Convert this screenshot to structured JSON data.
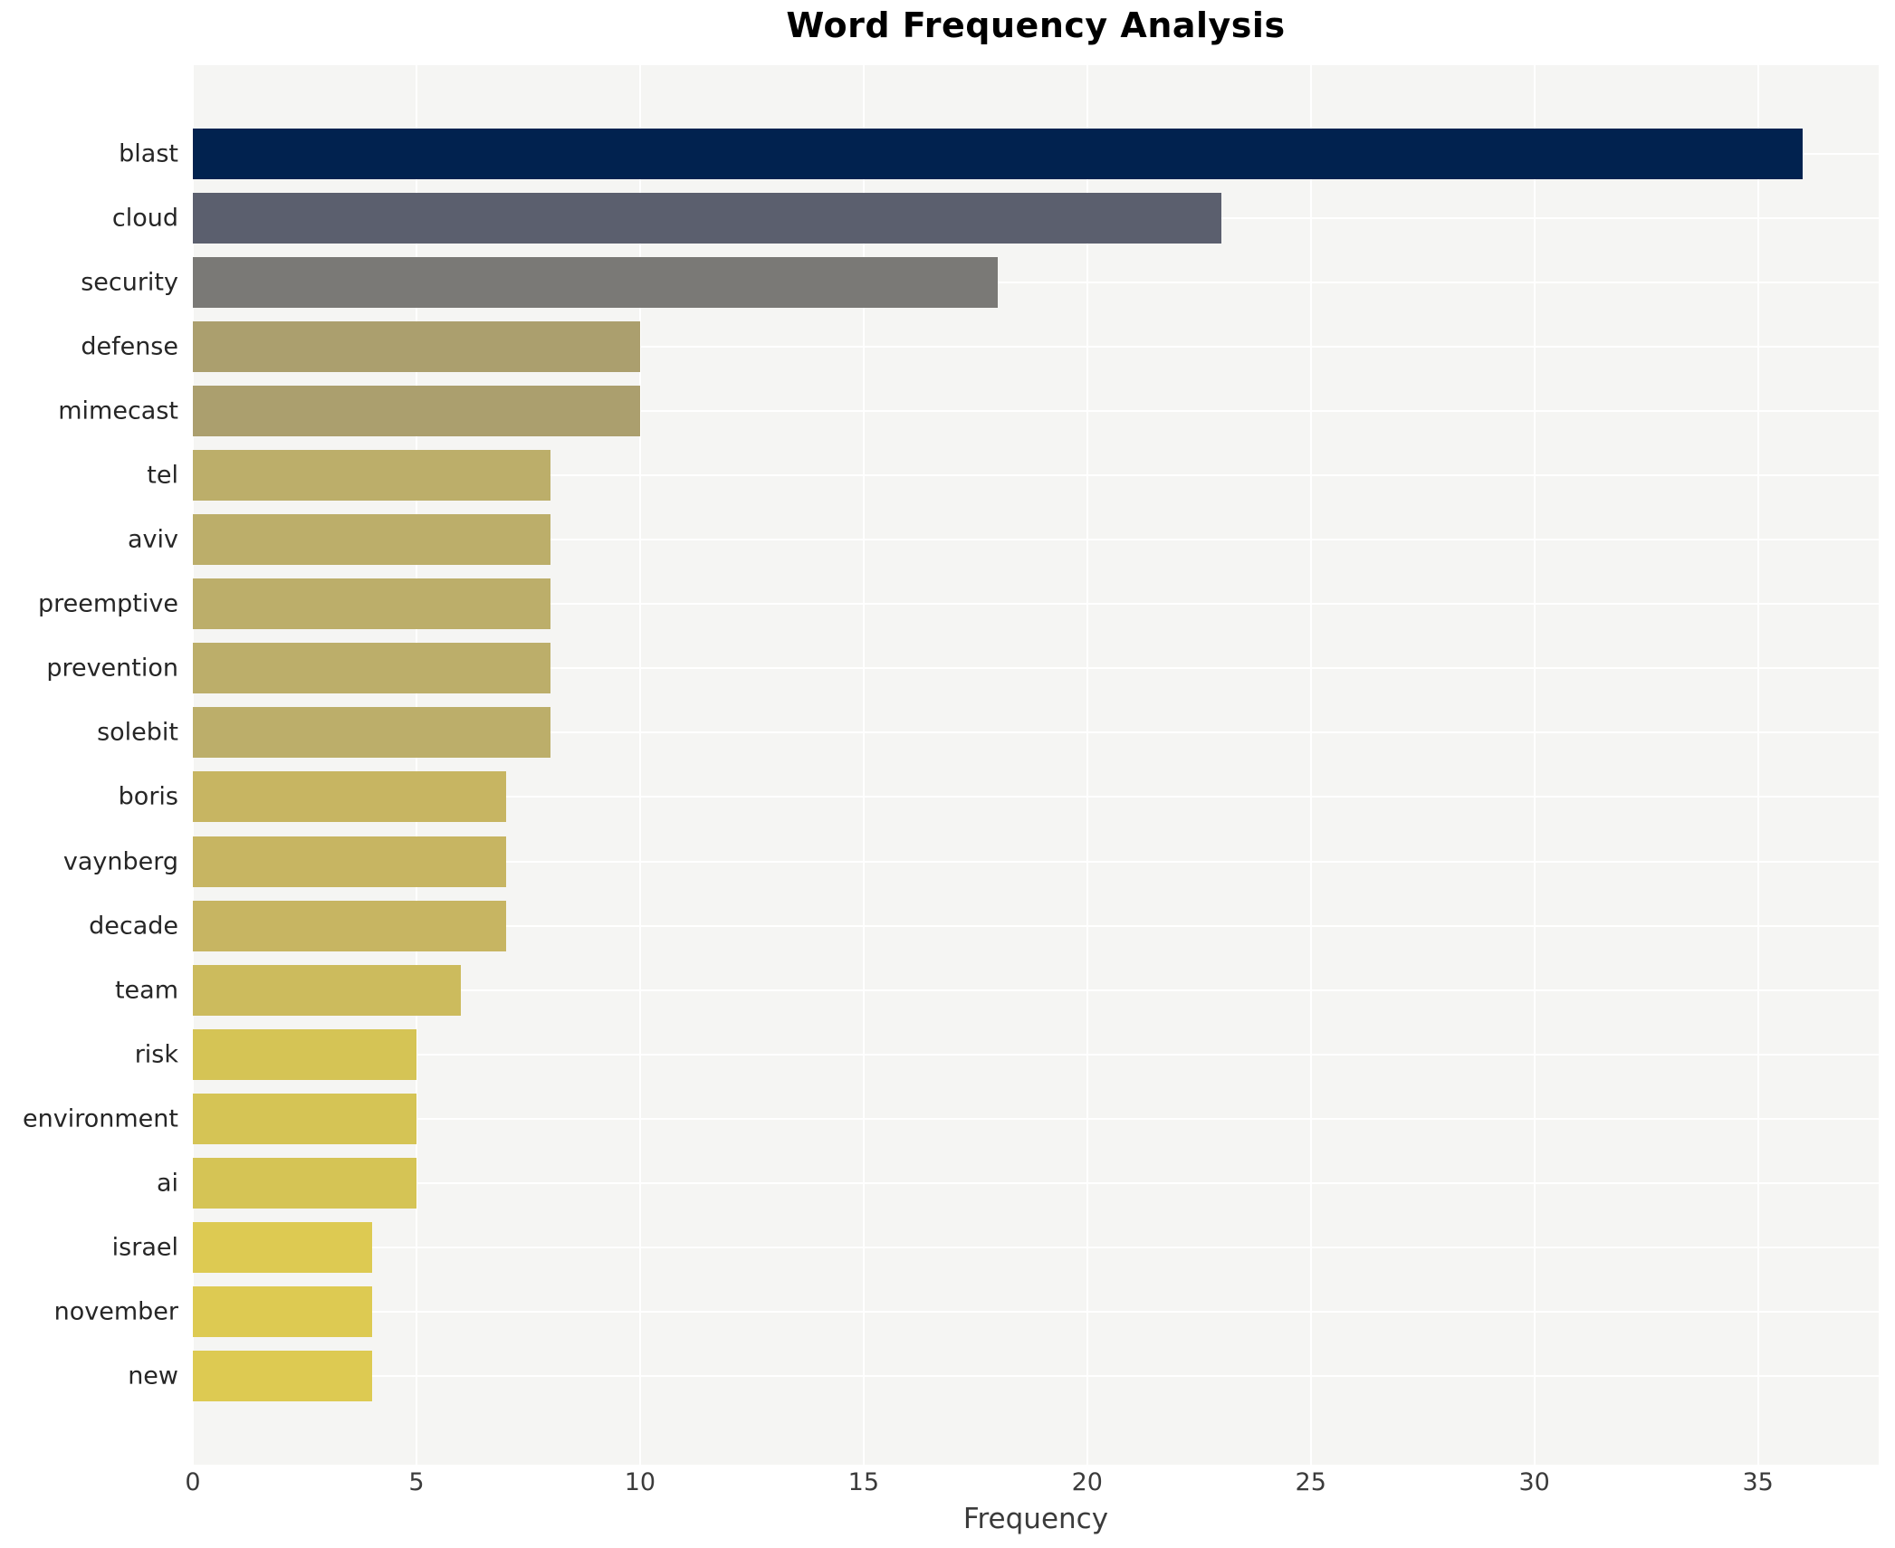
{
  "title": "Word Frequency Analysis",
  "chart_data": {
    "type": "bar",
    "orientation": "horizontal",
    "title": "Word Frequency Analysis",
    "xlabel": "Frequency",
    "ylabel": "",
    "grid": true,
    "legend": "none",
    "xlim": [
      0,
      37.7
    ],
    "x_ticks": [
      0,
      5,
      10,
      15,
      20,
      25,
      30,
      35
    ],
    "categories": [
      "blast",
      "cloud",
      "security",
      "defense",
      "mimecast",
      "tel",
      "aviv",
      "preemptive",
      "prevention",
      "solebit",
      "boris",
      "vaynberg",
      "decade",
      "team",
      "risk",
      "environment",
      "ai",
      "israel",
      "november",
      "new"
    ],
    "values": [
      36,
      23,
      18,
      10,
      10,
      8,
      8,
      8,
      8,
      8,
      7,
      7,
      7,
      6,
      5,
      5,
      5,
      4,
      4,
      4
    ],
    "bar_colors": [
      "#01224f",
      "#5b5f6e",
      "#7a7976",
      "#ab9f6e",
      "#ab9f6e",
      "#bcae6a",
      "#bcae6a",
      "#bcae6a",
      "#bcae6a",
      "#bcae6a",
      "#c7b562",
      "#c7b562",
      "#c7b562",
      "#ccbb5d",
      "#d5c455",
      "#d5c455",
      "#d5c455",
      "#ddca52",
      "#ddca52",
      "#ddca52"
    ]
  },
  "colors": {
    "page_bg": "#ffffff",
    "plot_bg": "#f5f5f3",
    "gridline": "#ffffff",
    "title_text": "#000000",
    "tick_text": "#3b3b3b",
    "category_text": "#262626"
  }
}
